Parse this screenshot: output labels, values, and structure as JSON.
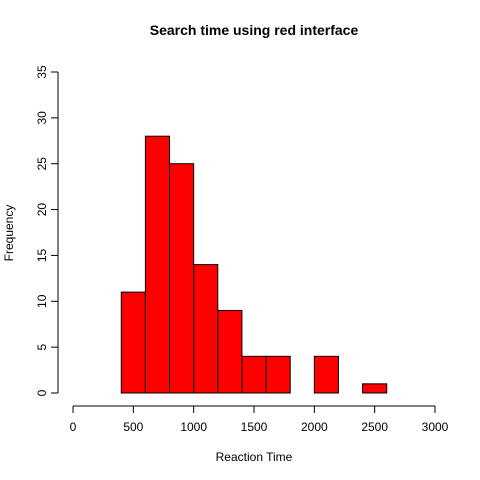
{
  "chart_data": {
    "type": "bar",
    "title": "Search time using red interface",
    "xlabel": "Reaction Time",
    "ylabel": "Frequency",
    "bar_color": "#ff0000",
    "bins": [
      {
        "start": 400,
        "end": 600,
        "count": 11
      },
      {
        "start": 600,
        "end": 800,
        "count": 28
      },
      {
        "start": 800,
        "end": 1000,
        "count": 25
      },
      {
        "start": 1000,
        "end": 1200,
        "count": 14
      },
      {
        "start": 1200,
        "end": 1400,
        "count": 9
      },
      {
        "start": 1400,
        "end": 1600,
        "count": 4
      },
      {
        "start": 1600,
        "end": 1800,
        "count": 4
      },
      {
        "start": 1800,
        "end": 2000,
        "count": 0
      },
      {
        "start": 2000,
        "end": 2200,
        "count": 4
      },
      {
        "start": 2200,
        "end": 2400,
        "count": 0
      },
      {
        "start": 2400,
        "end": 2600,
        "count": 1
      }
    ],
    "xlim": [
      0,
      3000
    ],
    "ylim": [
      0,
      35
    ],
    "xticks": [
      0,
      500,
      1000,
      1500,
      2000,
      2500,
      3000
    ],
    "yticks": [
      0,
      5,
      10,
      15,
      20,
      25,
      30,
      35
    ],
    "grid": false
  }
}
